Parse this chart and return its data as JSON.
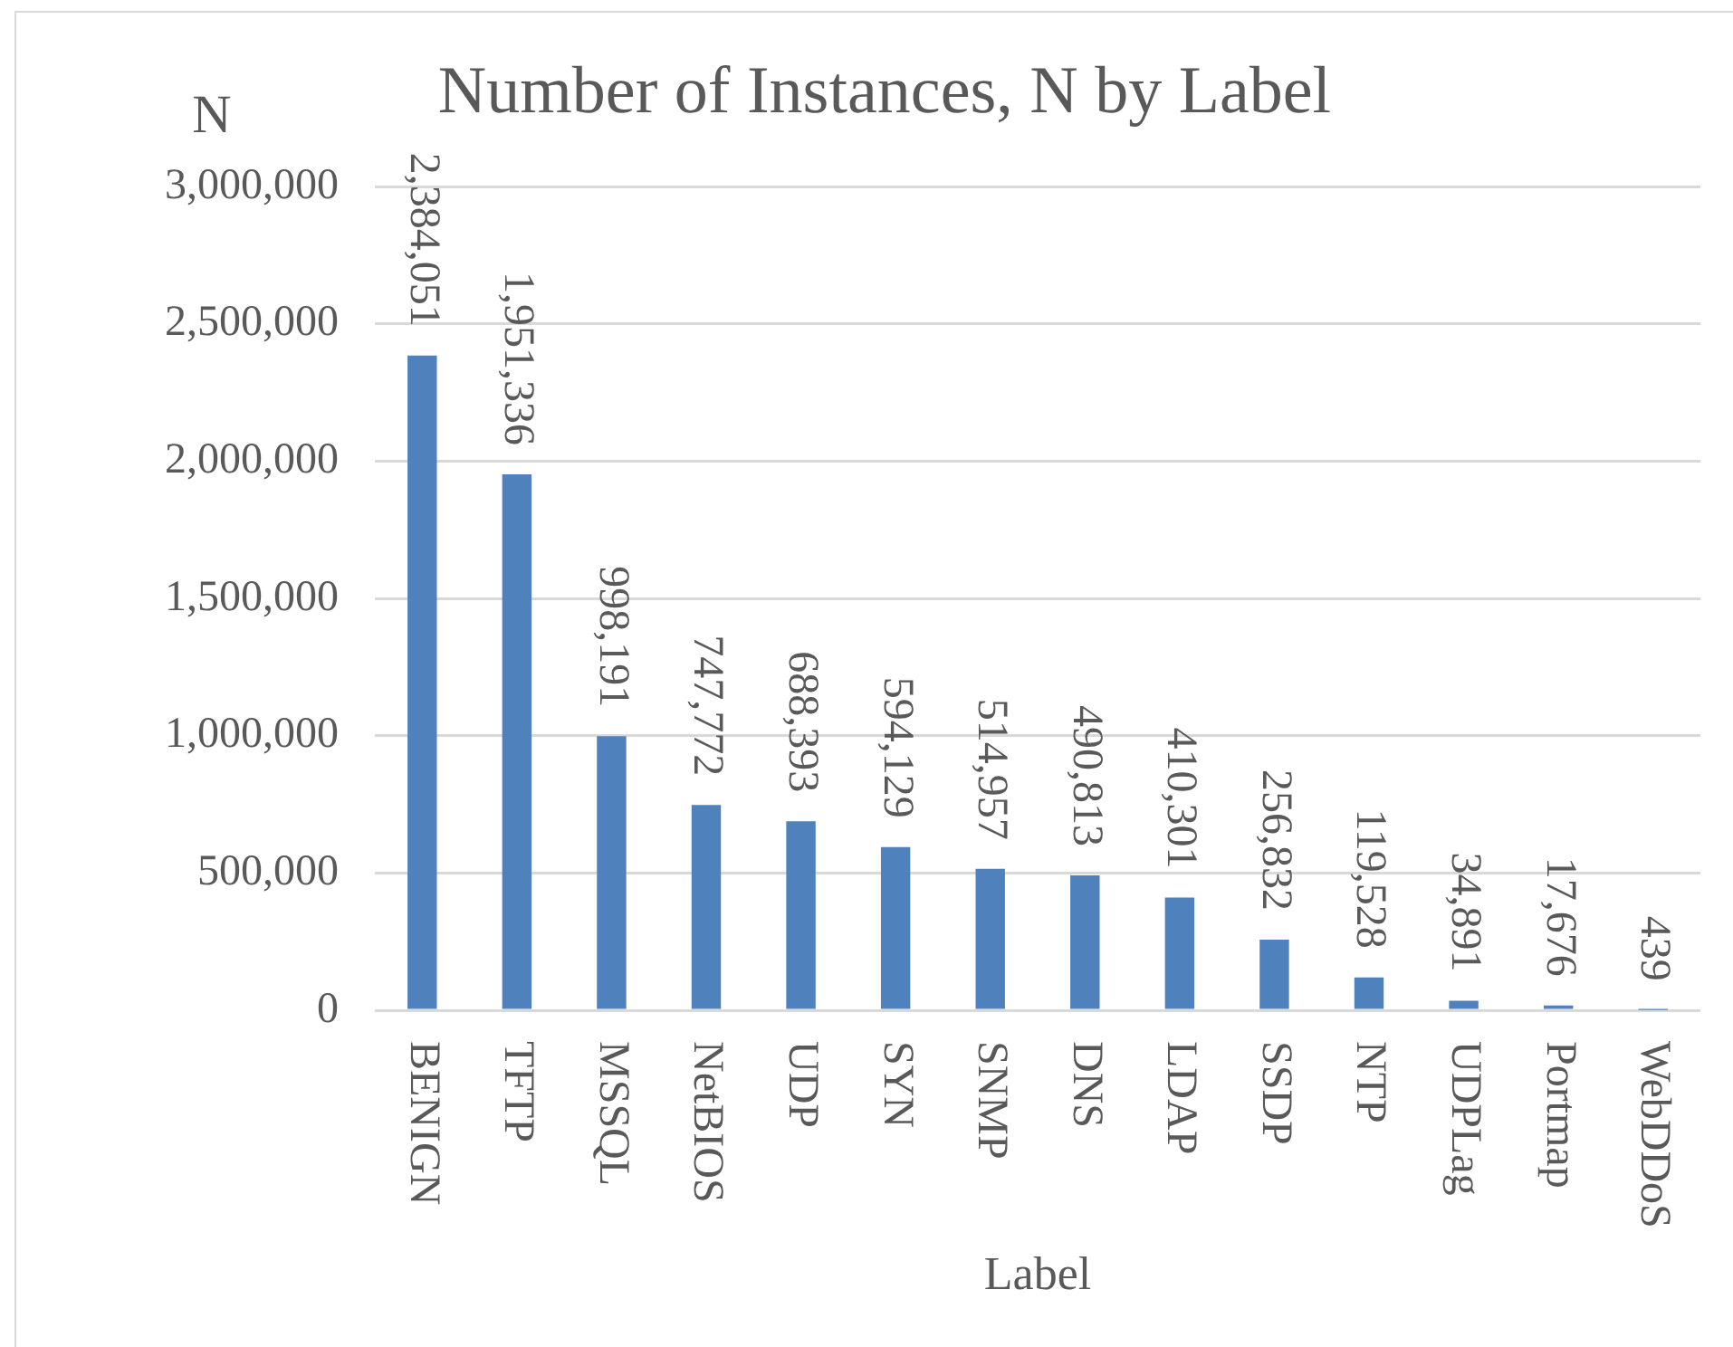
{
  "chart_data": {
    "type": "bar",
    "title": "Number of Instances, N by Label",
    "xlabel": "Label",
    "ylabel": "N",
    "categories": [
      "BENIGN",
      "TFTP",
      "MSSQL",
      "NetBIOS",
      "UDP",
      "SYN",
      "SNMP",
      "DNS",
      "LDAP",
      "SSDP",
      "NTP",
      "UDPLag",
      "Portmap",
      "WebDDoS"
    ],
    "values": [
      2384051,
      1951336,
      998191,
      747772,
      688393,
      594129,
      514957,
      490813,
      410301,
      256832,
      119528,
      34891,
      17676,
      439
    ],
    "value_labels": [
      "2,384,051",
      "1,951,336",
      "998,191",
      "747,772",
      "688,393",
      "594,129",
      "514,957",
      "490,813",
      "410,301",
      "256,832",
      "119,528",
      "34,891",
      "17,676",
      "439"
    ],
    "color": "#4f81bd",
    "ylim": [
      0,
      3000000
    ],
    "yticks": [
      {
        "value": 0,
        "label": "0"
      },
      {
        "value": 500000,
        "label": "500,000"
      },
      {
        "value": 1000000,
        "label": "1,000,000"
      },
      {
        "value": 1500000,
        "label": "1,500,000"
      },
      {
        "value": 2000000,
        "label": "2,000,000"
      },
      {
        "value": 2500000,
        "label": "2,500,000"
      },
      {
        "value": 3000000,
        "label": "3,000,000"
      }
    ],
    "grid": "y"
  }
}
